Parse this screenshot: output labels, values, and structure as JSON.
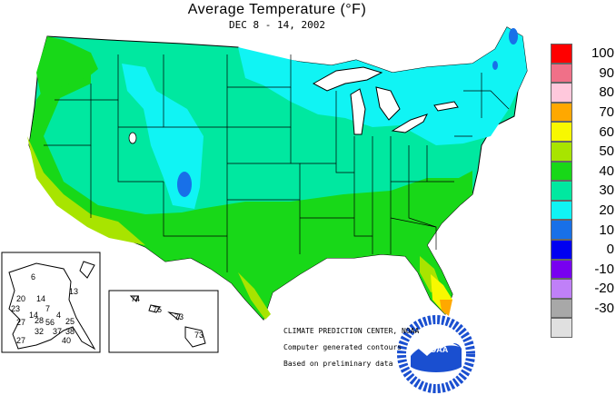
{
  "title": "Average Temperature (°F)",
  "subtitle": "DEC 8 - 14, 2002",
  "legend": [
    {
      "label": "100",
      "color": "#ff0000"
    },
    {
      "label": "90",
      "color": "#f07088"
    },
    {
      "label": "80",
      "color": "#ffc8dc"
    },
    {
      "label": "70",
      "color": "#ffa800"
    },
    {
      "label": "60",
      "color": "#f8f800"
    },
    {
      "label": "50",
      "color": "#a8e400"
    },
    {
      "label": "40",
      "color": "#18d818"
    },
    {
      "label": "30",
      "color": "#00e8a0"
    },
    {
      "label": "20",
      "color": "#10f4f4"
    },
    {
      "label": "10",
      "color": "#1870e8"
    },
    {
      "label": "0",
      "color": "#0000f0"
    },
    {
      "label": "-10",
      "color": "#7800f0"
    },
    {
      "label": "-20",
      "color": "#c080f8"
    },
    {
      "label": "-30",
      "color": "#a8a8a8"
    },
    {
      "label": "",
      "color": "#e0e0e0"
    }
  ],
  "credits": {
    "line1": "CLIMATE PREDICTION CENTER, NOAA",
    "line2": "Computer generated contours",
    "line3": "Based on preliminary data"
  },
  "noaa_logo_text": "NOAA",
  "alaska_values": [
    "6",
    "13",
    "20",
    "14",
    "23",
    "7",
    "14",
    "4",
    "27",
    "28",
    "56",
    "25",
    "32",
    "37",
    "38",
    "27",
    "40"
  ],
  "hawaii_values": [
    "74",
    "75",
    "73",
    "73"
  ]
}
